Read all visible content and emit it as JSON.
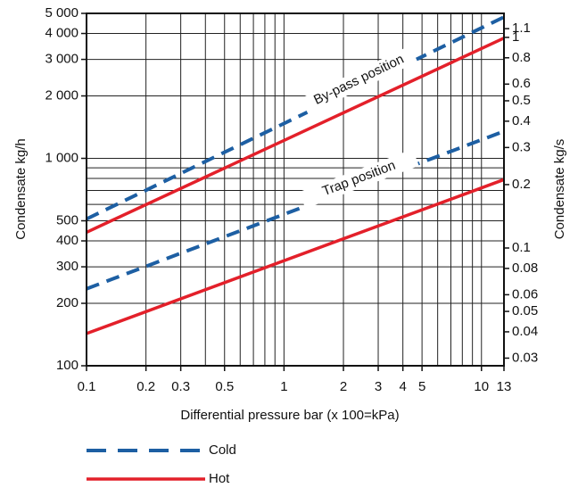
{
  "chart_data": {
    "type": "line",
    "x_label": "Differential pressure bar (x 100=kPa)",
    "y_label": "Condensate kg/h",
    "y2_label": "Condensate kg/s",
    "x": [
      0.1,
      13
    ],
    "groups": [
      {
        "label": "By-pass position",
        "series": [
          {
            "name": "Cold",
            "color": "#1d5fa3",
            "dashed": true,
            "values": [
              510,
              4800
            ]
          },
          {
            "name": "Hot",
            "color": "#e3202a",
            "dashed": false,
            "values": [
              440,
              3800
            ]
          }
        ]
      },
      {
        "label": "Trap position",
        "series": [
          {
            "name": "Cold",
            "color": "#1d5fa3",
            "dashed": true,
            "values": [
              235,
              1350
            ]
          },
          {
            "name": "Hot",
            "color": "#e3202a",
            "dashed": false,
            "values": [
              143,
              790
            ]
          }
        ]
      }
    ],
    "xlim": [
      0.1,
      13
    ],
    "xscale": "log",
    "xticks": [
      0.1,
      0.2,
      0.3,
      0.5,
      1,
      2,
      3,
      4,
      5,
      10,
      13
    ],
    "xgrid": [
      0.4,
      0.6,
      0.7,
      0.8,
      0.9,
      6,
      7,
      8,
      9
    ],
    "ylim": [
      100,
      5000
    ],
    "yscale": "log",
    "yticks": [
      100,
      200,
      300,
      400,
      500,
      {
        "value": 1000,
        "label": "1 000"
      },
      {
        "value": 2000,
        "label": "2 000"
      },
      {
        "value": 3000,
        "label": "3 000"
      },
      {
        "value": 4000,
        "label": "4 000"
      },
      {
        "value": 5000,
        "label": "5 000"
      }
    ],
    "ygrid": [
      600,
      700,
      800,
      900
    ],
    "y2lim": [
      0.0276,
      1.3
    ],
    "y2scale": "log",
    "y2ticks": [
      0.03,
      0.04,
      0.05,
      0.06,
      0.08,
      0.1,
      0.2,
      0.3,
      0.4,
      0.5,
      0.6,
      0.8,
      1,
      1.1
    ],
    "grid": true
  }
}
